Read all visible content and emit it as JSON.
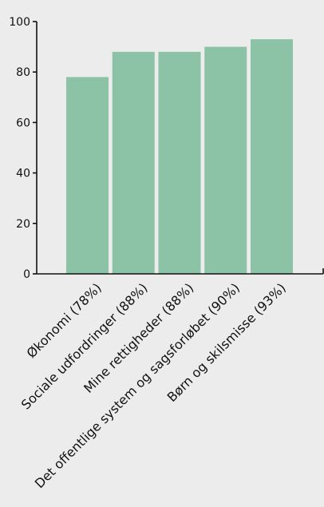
{
  "chart_data": {
    "type": "bar",
    "categories": [
      "Økonomi (78%)",
      "Sociale udfordringer (88%)",
      "Mine rettigheder (88%)",
      "Det offentlige system og sagsforløbet (90%)",
      "Børn og skilsmisse (93%)"
    ],
    "values": [
      78,
      88,
      88,
      90,
      93
    ],
    "ylim": [
      0,
      100
    ],
    "yticks": [
      0,
      20,
      40,
      60,
      80,
      100
    ],
    "grid": false,
    "colors": {
      "bar": "#8cc3a7",
      "axis": "#111111",
      "background": "#ececec"
    }
  }
}
